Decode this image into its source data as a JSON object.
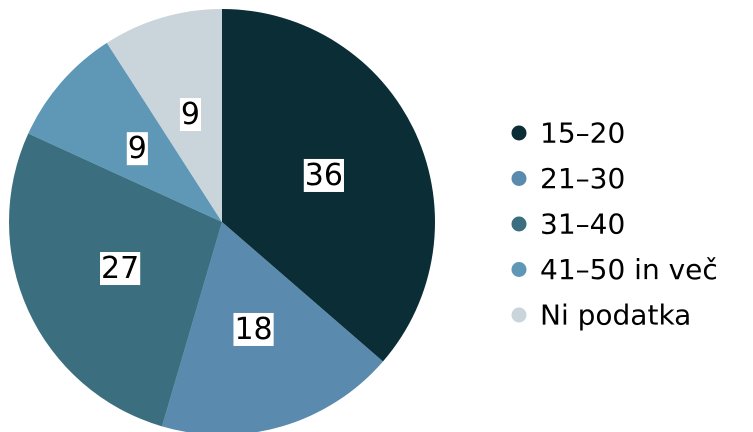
{
  "chart_data": {
    "type": "pie",
    "categories": [
      "15–20",
      "21–30",
      "31–40",
      "41–50 in več",
      "Ni podatka"
    ],
    "values": [
      36,
      18,
      27,
      9,
      9
    ],
    "colors": [
      "#0b2e36",
      "#5a8aad",
      "#3b6f80",
      "#5e98b6",
      "#c9d4db"
    ],
    "legend": "right"
  }
}
